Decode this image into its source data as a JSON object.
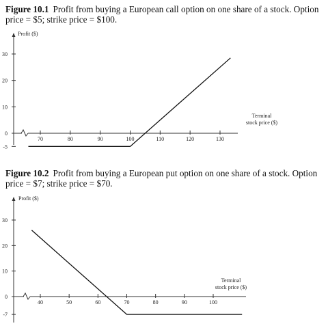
{
  "chart_data": [
    {
      "type": "line",
      "figure_label": "Figure 10.1",
      "title": "Profit from buying a European call option on one share of a stock. Option price = $5; strike price = $100.",
      "ylabel": "Profit ($)",
      "xlabel": "Terminal stock price ($)",
      "x_ticks": [
        70,
        80,
        90,
        100,
        110,
        120,
        130
      ],
      "y_ticks": [
        -5,
        0,
        10,
        20,
        30
      ],
      "xlim": [
        62,
        136
      ],
      "ylim": [
        -5,
        30
      ],
      "series": [
        {
          "x": [
            66,
            100,
            133.5
          ],
          "values": [
            -5,
            -5,
            28.5
          ]
        }
      ]
    },
    {
      "type": "line",
      "figure_label": "Figure 10.2",
      "title": "Profit from buying a European put option on one share of a stock. Option price = $7; strike price = $70.",
      "ylabel": "Profit ($)",
      "xlabel": "Terminal stock price ($)",
      "x_ticks": [
        40,
        50,
        60,
        70,
        80,
        90,
        100
      ],
      "y_ticks": [
        -7,
        0,
        10,
        20,
        30
      ],
      "xlim": [
        32,
        112
      ],
      "ylim": [
        -7,
        30
      ],
      "series": [
        {
          "x": [
            37,
            70,
            110
          ],
          "values": [
            26,
            -7,
            -7
          ]
        }
      ]
    }
  ]
}
